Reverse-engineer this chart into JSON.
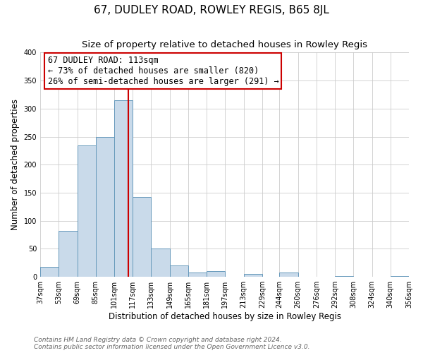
{
  "title": "67, DUDLEY ROAD, ROWLEY REGIS, B65 8JL",
  "subtitle": "Size of property relative to detached houses in Rowley Regis",
  "xlabel": "Distribution of detached houses by size in Rowley Regis",
  "ylabel": "Number of detached properties",
  "bar_left_edges": [
    37,
    53,
    69,
    85,
    101,
    117,
    133,
    149,
    165,
    181,
    197,
    213,
    229,
    244,
    260,
    276,
    292,
    308,
    324,
    340
  ],
  "bar_heights": [
    18,
    82,
    234,
    250,
    315,
    143,
    50,
    20,
    8,
    10,
    0,
    5,
    0,
    8,
    0,
    0,
    2,
    0,
    0,
    1
  ],
  "bin_width": 16,
  "bar_color": "#c9daea",
  "bar_edge_color": "#6699bb",
  "property_line_x": 113,
  "property_line_color": "#cc0000",
  "annotation_title": "67 DUDLEY ROAD: 113sqm",
  "annotation_line1": "← 73% of detached houses are smaller (820)",
  "annotation_line2": "26% of semi-detached houses are larger (291) →",
  "annotation_box_color": "#cc0000",
  "ylim": [
    0,
    400
  ],
  "xlim": [
    37,
    356
  ],
  "xtick_labels": [
    "37sqm",
    "53sqm",
    "69sqm",
    "85sqm",
    "101sqm",
    "117sqm",
    "133sqm",
    "149sqm",
    "165sqm",
    "181sqm",
    "197sqm",
    "213sqm",
    "229sqm",
    "244sqm",
    "260sqm",
    "276sqm",
    "292sqm",
    "308sqm",
    "324sqm",
    "340sqm",
    "356sqm"
  ],
  "xtick_positions": [
    37,
    53,
    69,
    85,
    101,
    117,
    133,
    149,
    165,
    181,
    197,
    213,
    229,
    244,
    260,
    276,
    292,
    308,
    324,
    340,
    356
  ],
  "ytick_positions": [
    0,
    50,
    100,
    150,
    200,
    250,
    300,
    350,
    400
  ],
  "footer1": "Contains HM Land Registry data © Crown copyright and database right 2024.",
  "footer2": "Contains public sector information licensed under the Open Government Licence v3.0.",
  "grid_color": "#cccccc",
  "background_color": "#ffffff",
  "title_fontsize": 11,
  "subtitle_fontsize": 9.5,
  "axis_label_fontsize": 8.5,
  "tick_fontsize": 7,
  "footer_fontsize": 6.5,
  "annotation_fontsize": 8.5
}
